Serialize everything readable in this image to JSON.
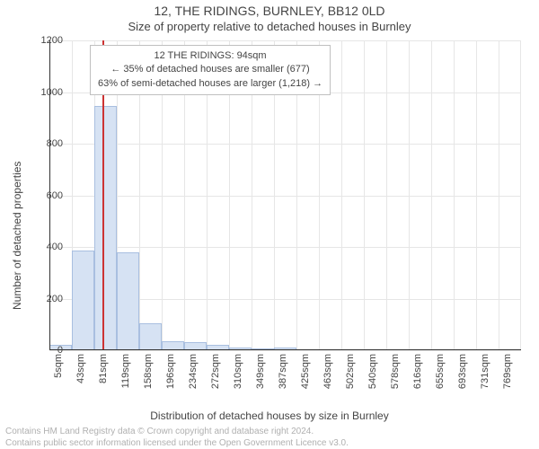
{
  "title": "12, THE RIDINGS, BURNLEY, BB12 0LD",
  "subtitle": "Size of property relative to detached houses in Burnley",
  "ylabel": "Number of detached properties",
  "xlabel": "Distribution of detached houses by size in Burnley",
  "chart": {
    "type": "histogram",
    "background_color": "#ffffff",
    "grid_color": "#e6e6e6",
    "axis_color": "#333333",
    "bar_fill": "#d6e2f3",
    "bar_stroke": "#a9bfe0",
    "marker_color": "#cc3333",
    "label_fontsize": 12,
    "tick_fontsize": 11,
    "ylim": [
      0,
      1200
    ],
    "ytick_step": 200,
    "bins": [
      {
        "label": "5sqm",
        "value": 20
      },
      {
        "label": "43sqm",
        "value": 385
      },
      {
        "label": "81sqm",
        "value": 945
      },
      {
        "label": "119sqm",
        "value": 380
      },
      {
        "label": "158sqm",
        "value": 105
      },
      {
        "label": "196sqm",
        "value": 35
      },
      {
        "label": "234sqm",
        "value": 30
      },
      {
        "label": "272sqm",
        "value": 20
      },
      {
        "label": "310sqm",
        "value": 12
      },
      {
        "label": "349sqm",
        "value": 8
      },
      {
        "label": "387sqm",
        "value": 10
      },
      {
        "label": "425sqm",
        "value": 0
      },
      {
        "label": "463sqm",
        "value": 0
      },
      {
        "label": "502sqm",
        "value": 0
      },
      {
        "label": "540sqm",
        "value": 0
      },
      {
        "label": "578sqm",
        "value": 0
      },
      {
        "label": "616sqm",
        "value": 0
      },
      {
        "label": "655sqm",
        "value": 0
      },
      {
        "label": "693sqm",
        "value": 0
      },
      {
        "label": "731sqm",
        "value": 0
      },
      {
        "label": "769sqm",
        "value": 0
      }
    ],
    "marker_bin_index": 2,
    "marker_fraction_in_bin": 0.34
  },
  "annotation": {
    "line1": "12 THE RIDINGS: 94sqm",
    "line2": "← 35% of detached houses are smaller (677)",
    "line3": "63% of semi-detached houses are larger (1,218) →",
    "border_color": "#c0c0c0",
    "background": "#ffffff",
    "fontsize": 11
  },
  "attribution": {
    "line1": "Contains HM Land Registry data © Crown copyright and database right 2024.",
    "line2": "Contains public sector information licensed under the Open Government Licence v3.0.",
    "color": "#b0b0b0",
    "fontsize": 10
  }
}
